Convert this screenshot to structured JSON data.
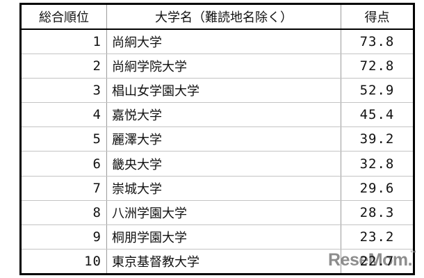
{
  "chart_data": {
    "type": "table",
    "columns": [
      "総合順位",
      "大学名（難読地名除く）",
      "得点"
    ],
    "rows": [
      [
        "1",
        "尚絅大学",
        "73.8"
      ],
      [
        "2",
        "尚絅学院大学",
        "72.8"
      ],
      [
        "3",
        "椙山女学園大学",
        "52.9"
      ],
      [
        "4",
        "嘉悦大学",
        "45.4"
      ],
      [
        "5",
        "麗澤大学",
        "39.2"
      ],
      [
        "6",
        "畿央大学",
        "32.8"
      ],
      [
        "7",
        "崇城大学",
        "29.6"
      ],
      [
        "8",
        "八洲学園大学",
        "28.3"
      ],
      [
        "9",
        "桐朋学園大学",
        "23.2"
      ],
      [
        "10",
        "東京基督教大学",
        "22.7"
      ]
    ]
  },
  "watermark": {
    "text": "ReseMom.",
    "mark": "™",
    "color": "#8d8d8d"
  },
  "colors": {
    "background": "#ffffff",
    "outer_border": "#000000",
    "grid_vertical": "#9a9a9a",
    "grid_horizontal": "#c3c3c3",
    "text": "#111111"
  }
}
